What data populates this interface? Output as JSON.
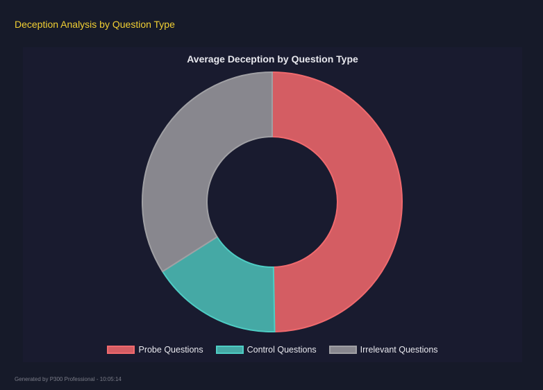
{
  "header": {
    "title": "Deception Analysis by Question Type"
  },
  "chart_data": {
    "type": "pie",
    "variant": "doughnut",
    "title": "Average Deception by Question Type",
    "categories": [
      "Probe Questions",
      "Control Questions",
      "Irrelevant Questions"
    ],
    "values": [
      49.7,
      16.3,
      34.0
    ],
    "colors": [
      "#d45d63",
      "#45a9a5",
      "#88878e"
    ],
    "border_colors": [
      "#f06a6e",
      "#4ecdc4",
      "#a0a0a4"
    ],
    "legend_position": "bottom"
  },
  "footer": {
    "text": "Generated by P300 Professional - 10:05:14"
  }
}
